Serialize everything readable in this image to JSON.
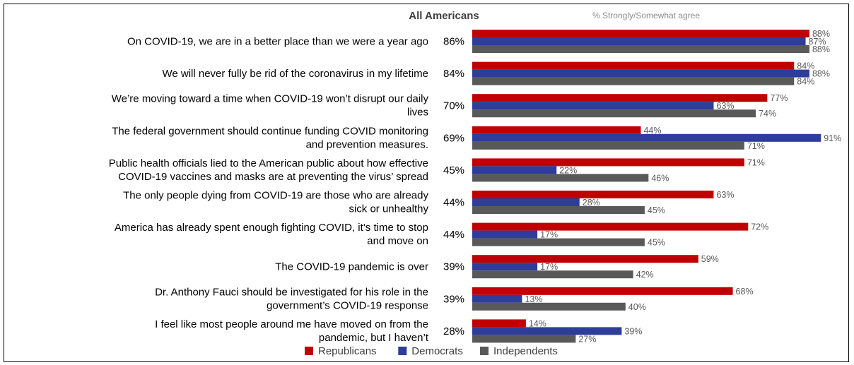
{
  "chart_data": {
    "type": "bar",
    "orientation": "horizontal",
    "column_header": "All Americans",
    "subtitle": "% Strongly/Somewhat agree",
    "categories": [
      [
        "On COVID-19, we are in a better place than we were a year ago"
      ],
      [
        "We will never fully be rid of the coronavirus in my lifetime"
      ],
      [
        "We’re moving toward a time when COVID-19 won’t disrupt our daily",
        "lives"
      ],
      [
        "The federal government should continue funding COVID monitoring",
        "and prevention measures."
      ],
      [
        "Public health officials lied to the American public about how effective",
        "COVID-19 vaccines and masks are at preventing the virus’ spread"
      ],
      [
        "The only people dying from COVID-19 are those who are already",
        "sick or unhealthy"
      ],
      [
        "America has already spent enough fighting COVID, it’s time to stop",
        "and move on"
      ],
      [
        "The COVID-19 pandemic is over"
      ],
      [
        "Dr. Anthony Fauci should be investigated for his role in the",
        "government’s COVID-19 response"
      ],
      [
        "I feel like most people around me have moved on from the",
        "pandemic, but I haven’t"
      ]
    ],
    "all_americans": [
      "86%",
      "84%",
      "70%",
      "69%",
      "45%",
      "44%",
      "44%",
      "39%",
      "39%",
      "28%"
    ],
    "series": [
      {
        "name": "Republicans",
        "color": "#c00000",
        "values": [
          88,
          84,
          77,
          44,
          71,
          63,
          72,
          59,
          68,
          14
        ]
      },
      {
        "name": "Democrats",
        "color": "#2e3d9a",
        "values": [
          87,
          88,
          63,
          91,
          22,
          28,
          17,
          17,
          13,
          39
        ]
      },
      {
        "name": "Independents",
        "color": "#595959",
        "values": [
          88,
          84,
          74,
          71,
          46,
          45,
          45,
          42,
          40,
          27
        ]
      }
    ],
    "unit": "%",
    "xlim": [
      0,
      100
    ],
    "grid": false,
    "legend": "bottom"
  }
}
